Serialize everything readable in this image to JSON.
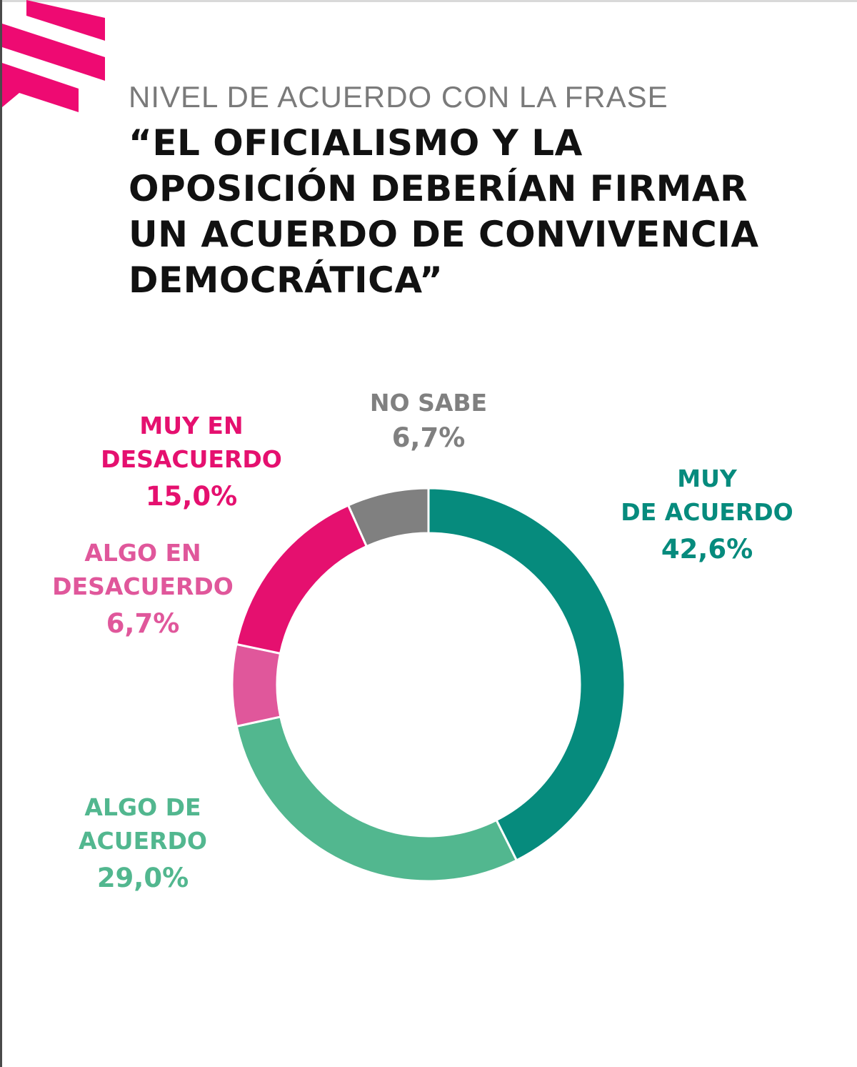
{
  "header": {
    "subtitle": "NIVEL DE ACUERDO CON LA FRASE",
    "title": "“EL OFICIALISMO Y LA OPOSICIÓN DEBERÍAN FIRMAR UN ACUERDO DE CONVIVENCIA DEMOCRÁTICA”"
  },
  "brand_color": "#ee0a72",
  "chart_data": {
    "type": "pie",
    "style": "donut",
    "direction": "clockwise from top",
    "slices": [
      {
        "label_line1": "MUY",
        "label_line2": "DE ACUERDO",
        "value": 42.6,
        "value_label": "42,6%",
        "color": "#068b7d"
      },
      {
        "label_line1": "ALGO DE",
        "label_line2": "ACUERDO",
        "value": 29.0,
        "value_label": "29,0%",
        "color": "#52b78f"
      },
      {
        "label_line1": "ALGO EN",
        "label_line2": "DESACUERDO",
        "value": 6.7,
        "value_label": "6,7%",
        "color": "#e0579b"
      },
      {
        "label_line1": "MUY EN",
        "label_line2": "DESACUERDO",
        "value": 15.0,
        "value_label": "15,0%",
        "color": "#e5106f"
      },
      {
        "label_line1": "NO SABE",
        "label_line2": "",
        "value": 6.7,
        "value_label": "6,7%",
        "color": "#808080"
      }
    ]
  }
}
